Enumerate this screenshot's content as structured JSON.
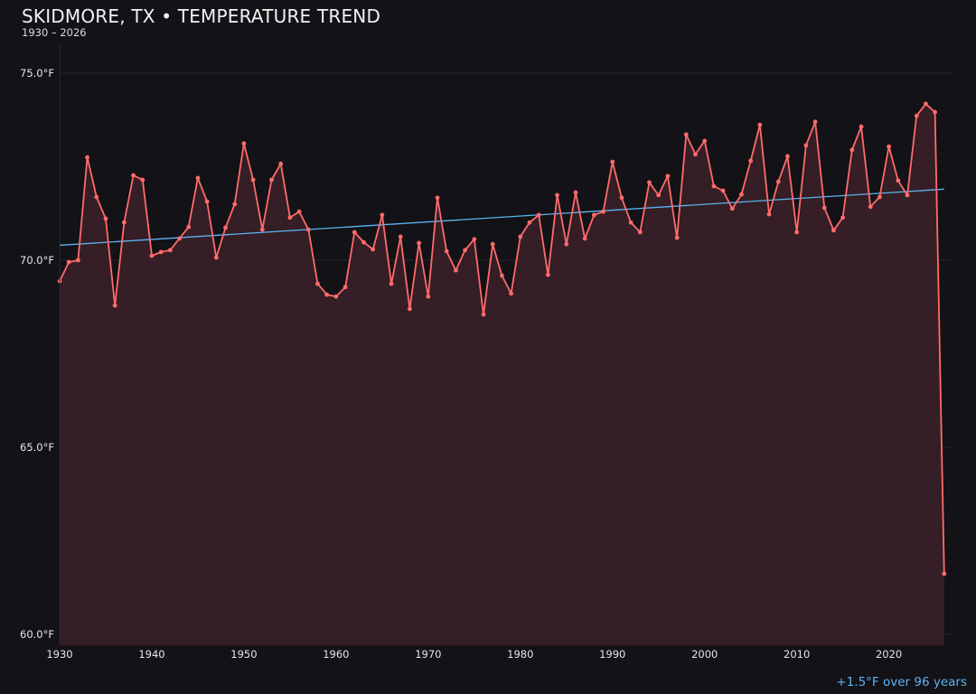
{
  "chart_data": {
    "type": "line",
    "title": "SKIDMORE, TX • TEMPERATURE TREND",
    "subtitle": "1930 – 2026",
    "annotation": "+1.5°F over 96 years",
    "xlabel": "",
    "ylabel": "",
    "xlim": [
      1930,
      2027
    ],
    "ylim": [
      59.7,
      76
    ],
    "grid": true,
    "x_ticks": [
      1930,
      1940,
      1950,
      1960,
      1970,
      1980,
      1990,
      2000,
      2010,
      2020
    ],
    "y_ticks": [
      60,
      65,
      70,
      75
    ],
    "y_tick_labels": [
      "60.0°F",
      "65.0°F",
      "70.0°F",
      "75.0°F"
    ],
    "colors": {
      "line": "#ff6b6b",
      "fill": "#3a2027",
      "trend": "#5ab4f0",
      "background": "#131217"
    },
    "series": [
      {
        "x": [
          1930,
          1931,
          1932,
          1933,
          1934,
          1935,
          1936,
          1937,
          1938,
          1939,
          1940,
          1941,
          1942,
          1943,
          1944,
          1945,
          1946,
          1947,
          1948,
          1949,
          1950,
          1951,
          1952,
          1953,
          1954,
          1955,
          1956,
          1957,
          1958,
          1959,
          1960,
          1961,
          1962,
          1963,
          1964,
          1965,
          1966,
          1967,
          1968,
          1969,
          1970,
          1971,
          1972,
          1973,
          1974,
          1975,
          1976,
          1977,
          1978,
          1979,
          1980,
          1981,
          1982,
          1983,
          1984,
          1985,
          1986,
          1987,
          1988,
          1989,
          1990,
          1991,
          1992,
          1993,
          1994,
          1995,
          1996,
          1997,
          1998,
          1999,
          2000,
          2001,
          2002,
          2003,
          2004,
          2005,
          2006,
          2007,
          2008,
          2009,
          2010,
          2011,
          2012,
          2013,
          2014,
          2015,
          2016,
          2017,
          2018,
          2019,
          2020,
          2021,
          2022,
          2023,
          2024,
          2025,
          2026
        ],
        "values": [
          69.44,
          69.95,
          70.0,
          72.75,
          71.69,
          71.11,
          68.79,
          71.01,
          72.27,
          72.15,
          70.12,
          70.22,
          70.27,
          70.58,
          70.89,
          72.2,
          71.57,
          70.07,
          70.87,
          71.5,
          73.12,
          72.15,
          70.82,
          72.15,
          72.58,
          71.14,
          71.3,
          70.82,
          69.37,
          69.08,
          69.03,
          69.28,
          70.75,
          70.48,
          70.29,
          71.21,
          69.37,
          70.63,
          68.7,
          70.46,
          69.03,
          71.67,
          70.24,
          69.73,
          70.27,
          70.56,
          68.55,
          70.43,
          69.59,
          69.11,
          70.63,
          71.01,
          71.21,
          69.61,
          71.74,
          70.43,
          71.81,
          70.58,
          71.21,
          71.3,
          72.63,
          71.67,
          71.01,
          70.75,
          72.08,
          71.74,
          72.25,
          70.6,
          73.36,
          72.83,
          73.19,
          71.98,
          71.86,
          71.38,
          71.76,
          72.66,
          73.62,
          71.23,
          72.1,
          72.78,
          70.75,
          73.07,
          73.7,
          71.4,
          70.8,
          71.14,
          72.95,
          73.57,
          71.43,
          71.69,
          73.04,
          72.13,
          71.74,
          73.86,
          74.18,
          73.96,
          61.62
        ]
      }
    ],
    "trend": {
      "start": [
        1930,
        70.4
      ],
      "end": [
        2026,
        71.9
      ]
    }
  }
}
